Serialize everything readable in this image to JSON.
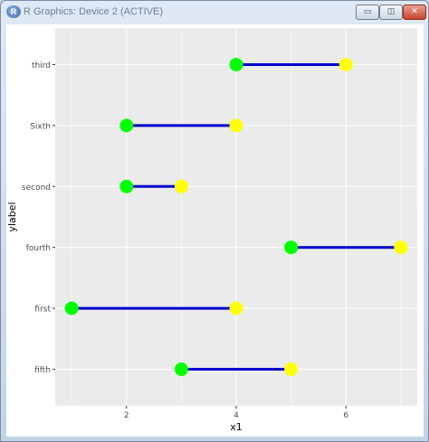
{
  "window": {
    "title": "R Graphics: Device 2 (ACTIVE)",
    "icon": "R",
    "minimize_icon": "minimize-icon",
    "maximize_icon": "maximize-icon",
    "close_icon": "close-icon"
  },
  "chart_data": {
    "type": "dumbbell",
    "xlabel": "x1",
    "ylabel": "ylabel",
    "xlim": [
      0.7,
      7.3
    ],
    "x_ticks": [
      2,
      4,
      6
    ],
    "x_ticks_labels": [
      "2",
      "4",
      "6"
    ],
    "categories": [
      "fifth",
      "first",
      "fourth",
      "second",
      "Sixth",
      "third"
    ],
    "start_values": [
      3,
      1,
      5,
      2,
      2,
      4
    ],
    "end_values": [
      5,
      4,
      7,
      3,
      4,
      6
    ],
    "colors": {
      "panel_bg": "#ebebeb",
      "grid": "#ffffff",
      "segment": "#0000cc",
      "start_point": "#00ff00",
      "end_point": "#ffff00",
      "tick_text": "#4d4d4d",
      "axis_title": "#000000"
    },
    "grid": true
  }
}
